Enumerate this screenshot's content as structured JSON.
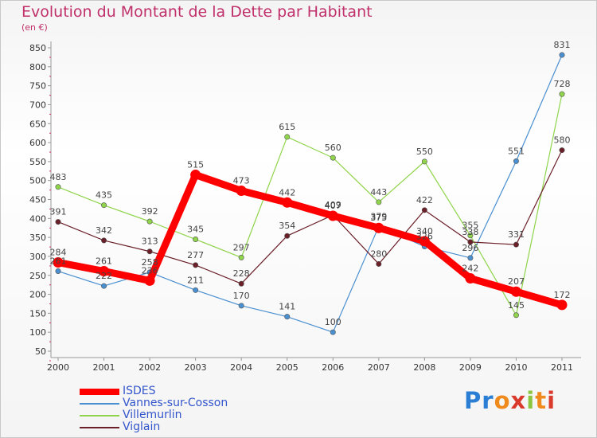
{
  "header": {
    "title": "Evolution du Montant de la Dette par Habitant",
    "unit": "(en €)"
  },
  "branding": {
    "logo_letters": [
      "P",
      "r",
      "o",
      "x",
      "i",
      "t",
      "i"
    ],
    "logo_colors": [
      "#2a7fd4",
      "#2a7fd4",
      "#f08a1c",
      "#d93a2b",
      "#8cc63e",
      "#f08a1c",
      "#d93a2b"
    ]
  },
  "chart_data": {
    "type": "line",
    "title": "Evolution du Montant de la Dette par Habitant",
    "ylabel": "(en €)",
    "xlabel": "",
    "x": [
      "2000",
      "2001",
      "2002",
      "2003",
      "2004",
      "2005",
      "2006",
      "2007",
      "2008",
      "2009",
      "2010",
      "2011"
    ],
    "ylim": [
      50,
      850
    ],
    "yticks": [
      50,
      100,
      150,
      200,
      250,
      300,
      350,
      400,
      450,
      500,
      550,
      600,
      650,
      700,
      750,
      800,
      850
    ],
    "grid": false,
    "legend_position": "bottom-left",
    "series": [
      {
        "name": "ISDES",
        "color": "#ff0000",
        "values": [
          284,
          261,
          236,
          515,
          473,
          442,
          407,
          375,
          340,
          242,
          207,
          172
        ],
        "labels": [
          "284",
          "261",
          "236",
          "515",
          "473",
          "442",
          "407",
          "375",
          "340",
          "242",
          "207",
          "172"
        ]
      },
      {
        "name": "Vannes-sur-Cosson",
        "color": "#4a8fd0",
        "values": [
          261,
          222,
          258,
          211,
          170,
          141,
          100,
          379,
          326,
          296,
          551,
          831
        ],
        "labels": [
          "261",
          "222",
          "258",
          "211",
          "170",
          "141",
          "100",
          "379",
          "326",
          "296",
          "551",
          "831"
        ]
      },
      {
        "name": "Villemurlin",
        "color": "#8fd44a",
        "values": [
          483,
          435,
          392,
          345,
          297,
          615,
          560,
          443,
          550,
          355,
          145,
          728
        ],
        "labels": [
          "483",
          "435",
          "392",
          "345",
          "297",
          "615",
          "560",
          "443",
          "550",
          "355",
          "145",
          "728"
        ]
      },
      {
        "name": "Viglain",
        "color": "#6b1f28",
        "values": [
          391,
          342,
          313,
          277,
          228,
          354,
          409,
          280,
          422,
          338,
          331,
          580
        ],
        "labels": [
          "391",
          "342",
          "313",
          "277",
          "228",
          "354",
          "409",
          "280",
          "422",
          "338",
          "331",
          "580"
        ]
      }
    ]
  }
}
